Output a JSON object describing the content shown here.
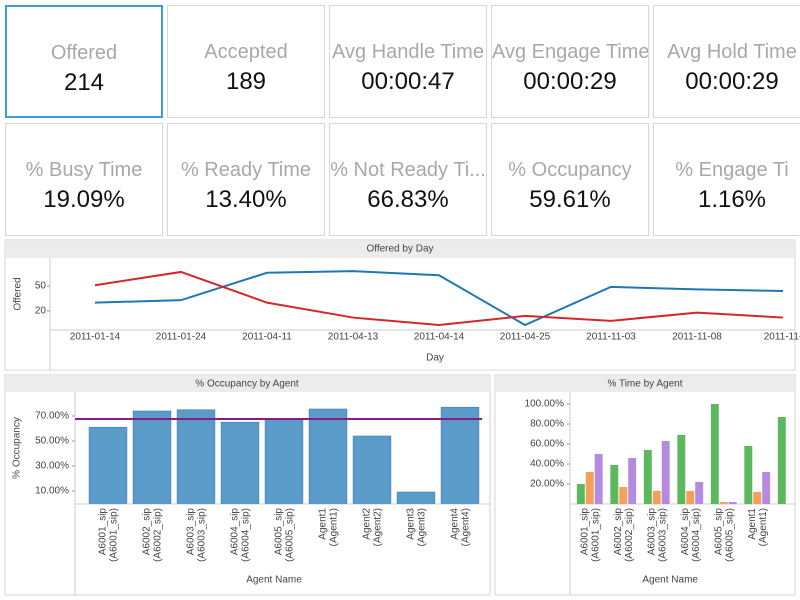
{
  "kpis": [
    {
      "label": "Offered",
      "value": "214"
    },
    {
      "label": "Accepted",
      "value": "189"
    },
    {
      "label": "Avg Handle Time",
      "value": "00:00:47"
    },
    {
      "label": "Avg Engage Time",
      "value": "00:00:29"
    },
    {
      "label": "Avg Hold Time",
      "value": "00:00:29"
    },
    {
      "label": "% Busy Time",
      "value": "19.09%"
    },
    {
      "label": "% Ready Time",
      "value": "13.40%"
    },
    {
      "label": "% Not Ready Ti...",
      "value": "66.83%"
    },
    {
      "label": "% Occupancy",
      "value": "59.61%"
    },
    {
      "label": "% Engage Ti",
      "value": "1.16%"
    }
  ],
  "chart_data": [
    {
      "type": "line",
      "title": "Offered by Day",
      "x_label": "Day",
      "y_label": "Offered",
      "categories": [
        "2011-01-14",
        "2011-01-24",
        "2011-04-11",
        "2011-04-13",
        "2011-04-14",
        "2011-04-25",
        "2011-11-03",
        "2011-11-08",
        "2011-11-"
      ],
      "series": [
        {
          "color": "#1f77b4",
          "values": [
            30,
            33,
            66,
            68,
            63,
            3,
            49,
            46,
            44
          ]
        },
        {
          "color": "#d62728",
          "values": [
            51,
            67,
            30,
            12,
            3,
            14,
            8,
            18,
            12
          ]
        }
      ],
      "ylim": [
        -3,
        79
      ],
      "yticks": [
        20,
        50
      ]
    },
    {
      "type": "bar",
      "title": "% Occupancy by Agent",
      "x_label": "Agent Name",
      "y_label": "% Occupancy",
      "categories": [
        [
          "A6001_sip",
          "(A6001_sip)"
        ],
        [
          "A6002_sip",
          "(A6002_sip)"
        ],
        [
          "A6003_sip",
          "(A6003_sip)"
        ],
        [
          "A6004_sip",
          "(A6004_sip)"
        ],
        [
          "A6005_sip",
          "(A6005_sip)"
        ],
        [
          "Agent1",
          "(Agent1)"
        ],
        [
          "Agent2",
          "(Agent2)"
        ],
        [
          "Agent3",
          "(Agent3)"
        ],
        [
          "Agent4",
          "(Agent4)"
        ]
      ],
      "series": [
        {
          "color": "#5b9bc9",
          "values": [
            61,
            74,
            75,
            65,
            67.6,
            75.6,
            54,
            9.2,
            77
          ]
        }
      ],
      "reference_line": {
        "value": 67.6,
        "color": "#8b1a8b"
      },
      "ylim": [
        0,
        82
      ],
      "yticks": [
        {
          "value": 10,
          "label": "10.00%"
        },
        {
          "value": 30,
          "label": "30.00%"
        },
        {
          "value": 50,
          "label": "50.00%"
        },
        {
          "value": 70,
          "label": "70.00%"
        }
      ]
    },
    {
      "type": "bar",
      "title": "% Time by Agent",
      "x_label": "Agent Name",
      "categories": [
        [
          "A6001_sip",
          "(A6001_sip)"
        ],
        [
          "A6002_sip",
          "(A6002_sip)"
        ],
        [
          "A6003_sip",
          "(A6003_sip)"
        ],
        [
          "A6004_sip",
          "(A6004_sip)"
        ],
        [
          "A6005_sip",
          "(A6005_sip)"
        ],
        [
          "Agent1",
          "(Agent1)"
        ],
        null
      ],
      "series": [
        {
          "color": "#5cb85c",
          "values": [
            20,
            39,
            54,
            69,
            100,
            58,
            87
          ]
        },
        {
          "color": "#f5a05a",
          "values": [
            32,
            17,
            13,
            13,
            2,
            12,
            null
          ]
        },
        {
          "color": "#b58be0",
          "values": [
            50,
            46,
            63,
            22,
            2,
            32,
            null
          ]
        }
      ],
      "ylim": [
        0,
        110
      ],
      "yticks": [
        {
          "value": 20,
          "label": "20.00%"
        },
        {
          "value": 40,
          "label": "40.00%"
        },
        {
          "value": 60,
          "label": "60.00%"
        },
        {
          "value": 80,
          "label": "80.00%"
        },
        {
          "value": 100,
          "label": "100.00%"
        }
      ]
    }
  ]
}
